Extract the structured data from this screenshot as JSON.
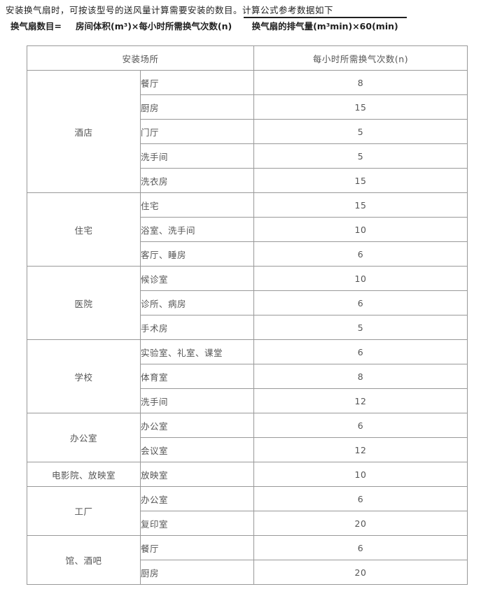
{
  "page": {
    "intro_text": "安装换气扇时，可按该型号的送风量计算需要安装的数目。计算公式参考数据如下"
  },
  "formula": {
    "lhs": "换气扇数目=",
    "numerator": "房间体积(m³)×每小时所需换气次数(n)",
    "denominator": "换气扇的排气量(m³min)×60(min)"
  },
  "table": {
    "headers": {
      "location": "安装场所",
      "rate": "每小时所需换气次数(n)"
    },
    "groups": [
      {
        "name": "酒店",
        "rows": [
          {
            "location": "餐厅",
            "value": "8"
          },
          {
            "location": "厨房",
            "value": "15"
          },
          {
            "location": "门厅",
            "value": "5"
          },
          {
            "location": "洗手间",
            "value": "5"
          },
          {
            "location": "洗衣房",
            "value": "15"
          }
        ]
      },
      {
        "name": "住宅",
        "rows": [
          {
            "location": "住宅",
            "value": "15"
          },
          {
            "location": "浴室、洗手间",
            "value": "10"
          },
          {
            "location": "客厅、睡房",
            "value": "6"
          }
        ]
      },
      {
        "name": "医院",
        "rows": [
          {
            "location": "候诊室",
            "value": "10"
          },
          {
            "location": "诊所、病房",
            "value": "6"
          },
          {
            "location": "手术房",
            "value": "5"
          }
        ]
      },
      {
        "name": "学校",
        "rows": [
          {
            "location": "实验室、礼室、课堂",
            "value": "6"
          },
          {
            "location": "体育室",
            "value": "8"
          },
          {
            "location": "洗手间",
            "value": "12"
          }
        ]
      },
      {
        "name": "办公室",
        "rows": [
          {
            "location": "办公室",
            "value": "6"
          },
          {
            "location": "会议室",
            "value": "12"
          }
        ]
      },
      {
        "name": "电影院、放映室",
        "rows": [
          {
            "location": "放映室",
            "value": "10"
          }
        ]
      },
      {
        "name": "工厂",
        "rows": [
          {
            "location": "办公室",
            "value": "6"
          },
          {
            "location": "复印室",
            "value": "20"
          }
        ]
      },
      {
        "name": "馆、酒吧",
        "rows": [
          {
            "location": "餐厅",
            "value": "6"
          },
          {
            "location": "厨房",
            "value": "20"
          }
        ]
      }
    ]
  },
  "colors": {
    "border": "#999999",
    "table_text": "#555555",
    "body_text": "#1f1f1f"
  }
}
